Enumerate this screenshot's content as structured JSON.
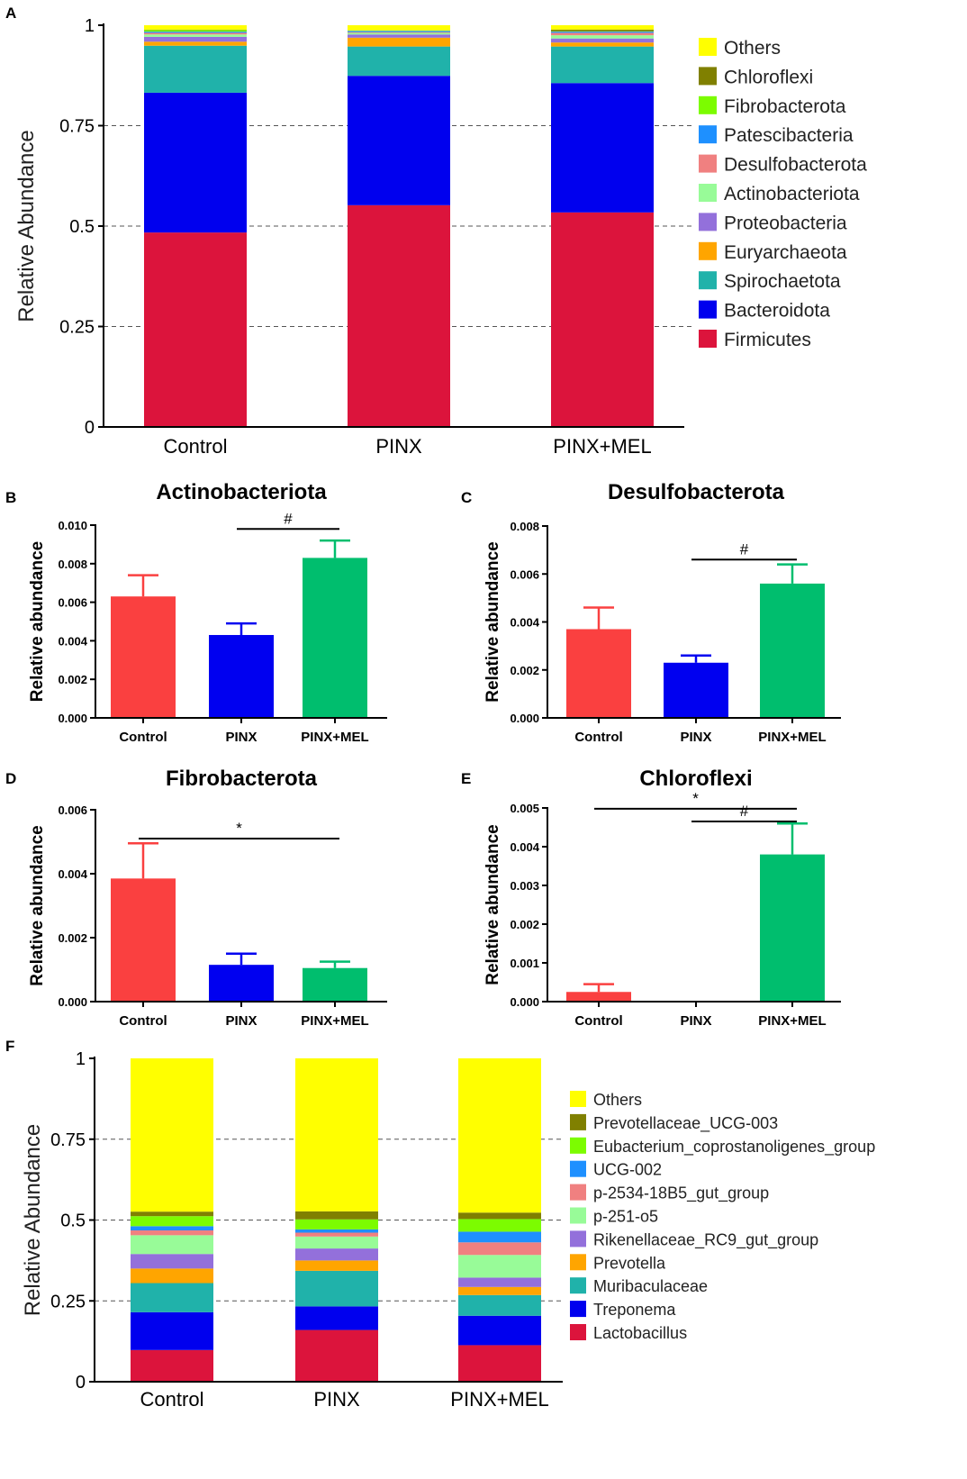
{
  "chart_data": [
    {
      "id": "A",
      "panel_label": "A",
      "type": "bar",
      "subtype": "stacked",
      "title": "",
      "xlabel": "",
      "ylabel": "Relative Abundance",
      "ylim": [
        0,
        1
      ],
      "yticks": [
        "0",
        "0.25",
        "0.5",
        "0.75",
        "1"
      ],
      "grid": "dashed horizontal at 0.25, 0.5, 0.75",
      "legend_position": "right",
      "categories": [
        "Control",
        "PINX",
        "PINX+MEL"
      ],
      "series": [
        {
          "name": "Firmicutes",
          "color": "#dc143c",
          "values": [
            0.484,
            0.552,
            0.534
          ]
        },
        {
          "name": "Bacteroidota",
          "color": "#0000ee",
          "values": [
            0.348,
            0.322,
            0.322
          ]
        },
        {
          "name": "Spirochaetota",
          "color": "#20b2aa",
          "values": [
            0.117,
            0.073,
            0.091
          ]
        },
        {
          "name": "Euryarchaeota",
          "color": "#ffa500",
          "values": [
            0.01,
            0.022,
            0.01
          ]
        },
        {
          "name": "Proteobacteria",
          "color": "#9370db",
          "values": [
            0.012,
            0.008,
            0.01
          ]
        },
        {
          "name": "Actinobacteriota",
          "color": "#98fb98",
          "values": [
            0.006,
            0.004,
            0.008
          ]
        },
        {
          "name": "Desulfobacterota",
          "color": "#f08080",
          "values": [
            0.004,
            0.002,
            0.006
          ]
        },
        {
          "name": "Patescibacteria",
          "color": "#1e90ff",
          "values": [
            0.003,
            0.003,
            0.003
          ]
        },
        {
          "name": "Fibrobacterota",
          "color": "#7cfc00",
          "values": [
            0.004,
            0.001,
            0.001
          ]
        },
        {
          "name": "Chloroflexi",
          "color": "#808000",
          "values": [
            0.001,
            0.0,
            0.004
          ]
        },
        {
          "name": "Others",
          "color": "#ffff00",
          "values": [
            0.011,
            0.013,
            0.011
          ]
        }
      ]
    },
    {
      "id": "B",
      "panel_label": "B",
      "type": "bar",
      "title": "Actinobacteriota",
      "xlabel": "",
      "ylabel": "Relative abundance",
      "ylim": [
        0,
        0.01
      ],
      "yticks": [
        "0.000",
        "0.002",
        "0.004",
        "0.006",
        "0.008",
        "0.010"
      ],
      "categories": [
        "Control",
        "PINX",
        "PINX+MEL"
      ],
      "values": [
        0.0063,
        0.0043,
        0.0083
      ],
      "errors": [
        0.0011,
        0.0006,
        0.0009
      ],
      "colors": [
        "#fa4040",
        "#0000f0",
        "#00be6e"
      ],
      "annotations": [
        {
          "text": "#",
          "from": 1,
          "to": 2,
          "level": 0.0098
        }
      ]
    },
    {
      "id": "C",
      "panel_label": "C",
      "type": "bar",
      "title": "Desulfobacterota",
      "xlabel": "",
      "ylabel": "Relative abundance",
      "ylim": [
        0,
        0.008
      ],
      "yticks": [
        "0.000",
        "0.002",
        "0.004",
        "0.006",
        "0.008"
      ],
      "categories": [
        "Control",
        "PINX",
        "PINX+MEL"
      ],
      "values": [
        0.0037,
        0.0023,
        0.0056
      ],
      "errors": [
        0.0009,
        0.0003,
        0.0008
      ],
      "colors": [
        "#fa4040",
        "#0000f0",
        "#00be6e"
      ],
      "annotations": [
        {
          "text": "#",
          "from": 1,
          "to": 2,
          "level": 0.0066
        }
      ]
    },
    {
      "id": "D",
      "panel_label": "D",
      "type": "bar",
      "title": "Fibrobacterota",
      "xlabel": "",
      "ylabel": "Relative abundance",
      "ylim": [
        0,
        0.006
      ],
      "yticks": [
        "0.000",
        "0.002",
        "0.004",
        "0.006"
      ],
      "categories": [
        "Control",
        "PINX",
        "PINX+MEL"
      ],
      "values": [
        0.00385,
        0.00115,
        0.00105
      ],
      "errors": [
        0.0011,
        0.00035,
        0.0002
      ],
      "colors": [
        "#fa4040",
        "#0000f0",
        "#00be6e"
      ],
      "annotations": [
        {
          "text": "*",
          "from": 0,
          "to": 2,
          "level": 0.0051
        }
      ]
    },
    {
      "id": "E",
      "panel_label": "E",
      "type": "bar",
      "title": "Chloroflexi",
      "xlabel": "",
      "ylabel": "Relative abundance",
      "ylim": [
        0,
        0.005
      ],
      "yticks": [
        "0.000",
        "0.001",
        "0.002",
        "0.003",
        "0.004",
        "0.005"
      ],
      "categories": [
        "Control",
        "PINX",
        "PINX+MEL"
      ],
      "values": [
        0.00025,
        0.0,
        0.0038
      ],
      "errors": [
        0.0002,
        0.0,
        0.0008
      ],
      "colors": [
        "#fa4040",
        "#0000f0",
        "#00be6e"
      ],
      "annotations": [
        {
          "text": "*",
          "from": 0,
          "to": 2,
          "level": 0.00498
        },
        {
          "text": "#",
          "from": 1,
          "to": 2,
          "level": 0.00465
        }
      ]
    },
    {
      "id": "F",
      "panel_label": "F",
      "type": "bar",
      "subtype": "stacked",
      "title": "",
      "xlabel": "",
      "ylabel": "Relative Abundance",
      "ylim": [
        0,
        1
      ],
      "yticks": [
        "0",
        "0.25",
        "0.5",
        "0.75",
        "1"
      ],
      "grid": "dashed horizontal at 0.25, 0.5, 0.75",
      "legend_position": "right",
      "categories": [
        "Control",
        "PINX",
        "PINX+MEL"
      ],
      "series": [
        {
          "name": "Lactobacillus",
          "color": "#dc143c",
          "values": [
            0.098,
            0.16,
            0.113
          ]
        },
        {
          "name": "Treponema",
          "color": "#0000ee",
          "values": [
            0.117,
            0.073,
            0.091
          ]
        },
        {
          "name": "Muribaculaceae",
          "color": "#20b2aa",
          "values": [
            0.09,
            0.11,
            0.064
          ]
        },
        {
          "name": "Prevotella",
          "color": "#ffa500",
          "values": [
            0.045,
            0.032,
            0.025
          ]
        },
        {
          "name": "Rikenellaceae_RC9_gut_group",
          "color": "#9370db",
          "values": [
            0.045,
            0.037,
            0.029
          ]
        },
        {
          "name": "p-251-o5",
          "color": "#98fb98",
          "values": [
            0.058,
            0.037,
            0.07
          ]
        },
        {
          "name": "p-2534-18B5_gut_group",
          "color": "#f08080",
          "values": [
            0.015,
            0.012,
            0.039
          ]
        },
        {
          "name": "UCG-002",
          "color": "#1e90ff",
          "values": [
            0.013,
            0.01,
            0.033
          ]
        },
        {
          "name": "Eubacterium_coprostanoligenes_group",
          "color": "#7cfc00",
          "values": [
            0.031,
            0.031,
            0.039
          ]
        },
        {
          "name": "Prevotellaceae_UCG-003",
          "color": "#808000",
          "values": [
            0.014,
            0.025,
            0.02
          ]
        },
        {
          "name": "Others",
          "color": "#ffff00",
          "values": [
            0.474,
            0.473,
            0.477
          ]
        }
      ]
    }
  ]
}
